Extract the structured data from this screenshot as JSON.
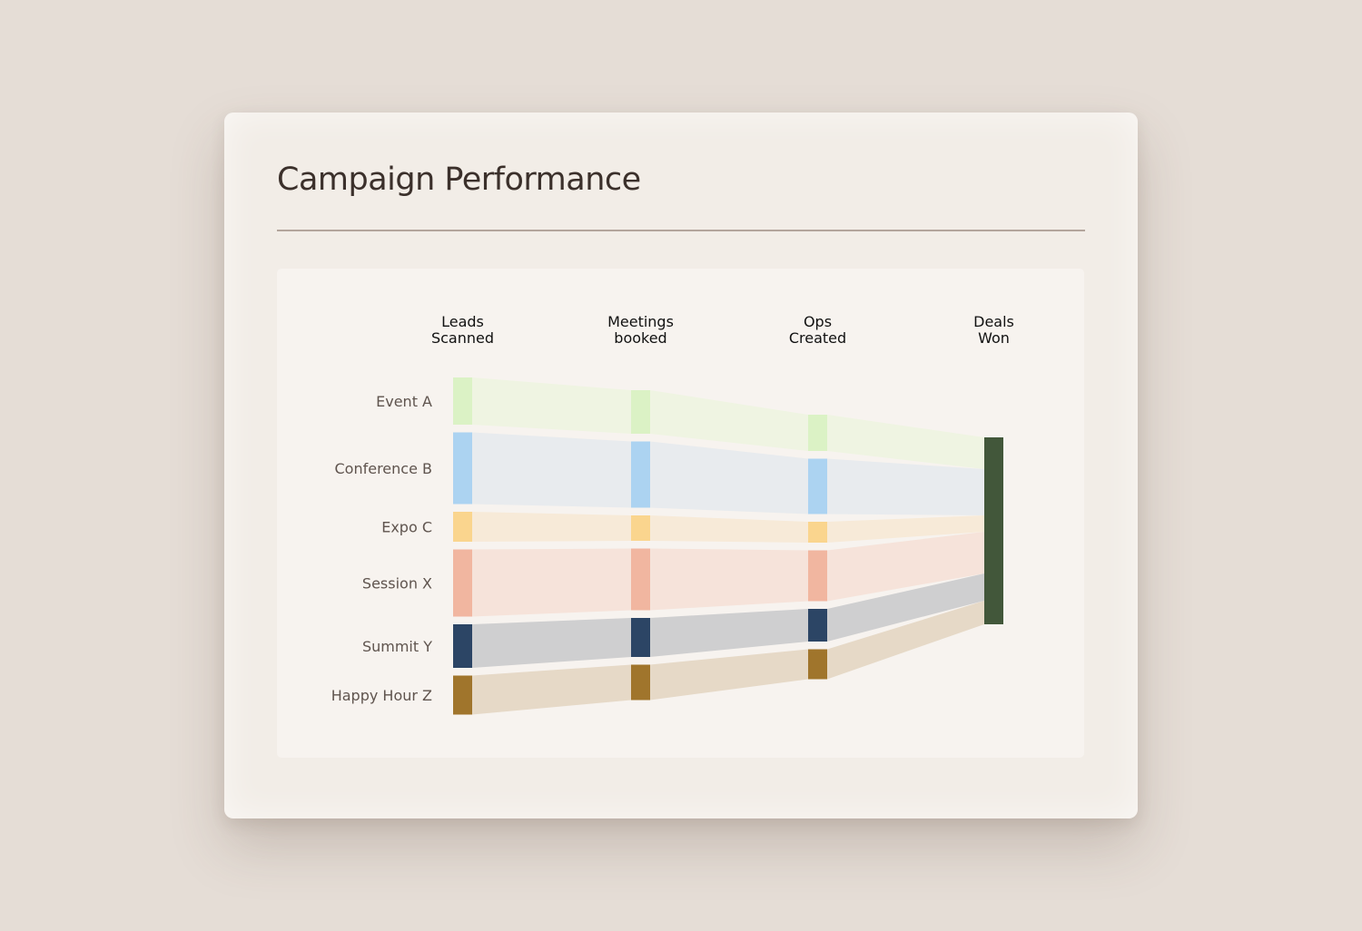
{
  "title": "Campaign Performance",
  "colors": {
    "background": "#e5ddd6",
    "card": "#f2ede7",
    "panel": "#f7f3ef",
    "deals_won_node": "#42573a"
  },
  "chart_data": {
    "type": "sankey",
    "stages": [
      [
        "Leads",
        "Scanned"
      ],
      [
        "Meetings",
        "booked"
      ],
      [
        "Ops",
        "Created"
      ],
      [
        "Deals",
        "Won"
      ]
    ],
    "sources": [
      {
        "name": "Event A",
        "node_color": "#dbf2c5",
        "flow_color": "#eff4e2"
      },
      {
        "name": "Conference B",
        "node_color": "#acd3f1",
        "flow_color": "#e8ebee"
      },
      {
        "name": "Expo C",
        "node_color": "#fad58e",
        "flow_color": "#f7ead8"
      },
      {
        "name": "Session X",
        "node_color": "#f1b6a0",
        "flow_color": "#f6e3da"
      },
      {
        "name": "Summit Y",
        "node_color": "#2c4565",
        "flow_color": "#cfcfd0"
      },
      {
        "name": "Happy Hour Z",
        "node_color": "#a0752c",
        "flow_color": "#e6d9c7"
      }
    ],
    "values": [
      {
        "source": "Event A",
        "stages": [
          52,
          48,
          40,
          35
        ]
      },
      {
        "source": "Conference B",
        "stages": [
          79,
          73,
          61,
          51
        ]
      },
      {
        "source": "Expo C",
        "stages": [
          33,
          28,
          23,
          18
        ]
      },
      {
        "source": "Session X",
        "stages": [
          74,
          68,
          56,
          46
        ]
      },
      {
        "source": "Summit Y",
        "stages": [
          48,
          43,
          36,
          30
        ]
      },
      {
        "source": "Happy Hour Z",
        "stages": [
          43,
          39,
          33,
          26
        ]
      }
    ]
  }
}
